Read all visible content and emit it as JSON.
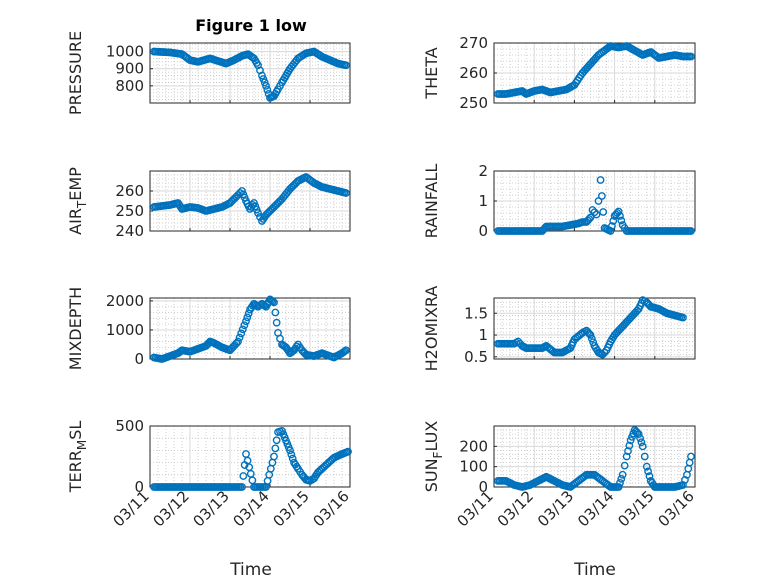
{
  "figure": {
    "title": "Figure 1 low",
    "marker_color": "#0072bd",
    "xlabel": "Time",
    "xtick_labels": [
      "03/11",
      "03/12",
      "03/13",
      "03/14",
      "03/15",
      "03/16"
    ]
  },
  "chart_data": [
    {
      "type": "scatter",
      "panel": "PRESSURE",
      "ylabel": "PRESSURE",
      "x_start": "03/11",
      "x_end": "03/16",
      "xlim_days": [
        0,
        5
      ],
      "ylim": [
        700,
        1050
      ],
      "yticks": [
        800,
        900,
        1000
      ],
      "grid": true,
      "minor_grid": true,
      "points": [
        [
          0.1,
          1000
        ],
        [
          0.5,
          995
        ],
        [
          0.8,
          985
        ],
        [
          1.0,
          950
        ],
        [
          1.2,
          940
        ],
        [
          1.5,
          960
        ],
        [
          1.7,
          945
        ],
        [
          1.9,
          930
        ],
        [
          2.1,
          950
        ],
        [
          2.3,
          975
        ],
        [
          2.45,
          985
        ],
        [
          2.6,
          960
        ],
        [
          2.7,
          920
        ],
        [
          2.8,
          860
        ],
        [
          2.9,
          800
        ],
        [
          3.0,
          730
        ],
        [
          3.1,
          740
        ],
        [
          3.2,
          780
        ],
        [
          3.3,
          820
        ],
        [
          3.4,
          860
        ],
        [
          3.5,
          900
        ],
        [
          3.7,
          960
        ],
        [
          3.9,
          990
        ],
        [
          4.1,
          1000
        ],
        [
          4.3,
          970
        ],
        [
          4.5,
          950
        ],
        [
          4.7,
          930
        ],
        [
          4.9,
          920
        ]
      ]
    },
    {
      "type": "scatter",
      "panel": "THETA",
      "ylabel": "THETA",
      "x_start": "03/11",
      "x_end": "03/16",
      "xlim_days": [
        0,
        5
      ],
      "ylim": [
        250,
        270
      ],
      "yticks": [
        250,
        260,
        270
      ],
      "grid": true,
      "minor_grid": true,
      "points": [
        [
          0.1,
          253
        ],
        [
          0.3,
          253
        ],
        [
          0.5,
          253.5
        ],
        [
          0.7,
          254
        ],
        [
          0.8,
          253
        ],
        [
          1.0,
          254
        ],
        [
          1.2,
          254.5
        ],
        [
          1.4,
          253.5
        ],
        [
          1.6,
          254
        ],
        [
          1.8,
          254.5
        ],
        [
          2.0,
          256
        ],
        [
          2.2,
          260
        ],
        [
          2.4,
          263
        ],
        [
          2.6,
          266
        ],
        [
          2.8,
          268
        ],
        [
          2.9,
          269
        ],
        [
          3.1,
          268.5
        ],
        [
          3.3,
          269
        ],
        [
          3.5,
          267.5
        ],
        [
          3.7,
          266
        ],
        [
          3.9,
          267
        ],
        [
          4.1,
          265
        ],
        [
          4.3,
          265.5
        ],
        [
          4.5,
          266
        ],
        [
          4.7,
          265.5
        ],
        [
          4.9,
          265.5
        ]
      ]
    },
    {
      "type": "scatter",
      "panel": "AIR_TEMP",
      "ylabel": "AIR_TEMP",
      "ylabel_main": "AIR",
      "ylabel_sub": "T",
      "ylabel_rest": "EMP",
      "x_start": "03/11",
      "x_end": "03/16",
      "xlim_days": [
        0,
        5
      ],
      "ylim": [
        240,
        270
      ],
      "yticks": [
        240,
        250,
        260
      ],
      "grid": true,
      "minor_grid": true,
      "points": [
        [
          0.1,
          252
        ],
        [
          0.3,
          252.5
        ],
        [
          0.5,
          253
        ],
        [
          0.7,
          254
        ],
        [
          0.8,
          251
        ],
        [
          1.0,
          252
        ],
        [
          1.2,
          251.5
        ],
        [
          1.4,
          250
        ],
        [
          1.6,
          251
        ],
        [
          1.8,
          252
        ],
        [
          2.0,
          254
        ],
        [
          2.2,
          258
        ],
        [
          2.3,
          260
        ],
        [
          2.4,
          255
        ],
        [
          2.5,
          251
        ],
        [
          2.6,
          254
        ],
        [
          2.7,
          249
        ],
        [
          2.8,
          245
        ],
        [
          2.9,
          248
        ],
        [
          3.1,
          252
        ],
        [
          3.3,
          256
        ],
        [
          3.5,
          261
        ],
        [
          3.7,
          265
        ],
        [
          3.9,
          267
        ],
        [
          4.1,
          264
        ],
        [
          4.3,
          262
        ],
        [
          4.5,
          261
        ],
        [
          4.7,
          260
        ],
        [
          4.9,
          259
        ]
      ]
    },
    {
      "type": "scatter",
      "panel": "RAINFALL",
      "ylabel": "RAINFALL",
      "x_start": "03/11",
      "x_end": "03/16",
      "xlim_days": [
        0,
        5
      ],
      "ylim": [
        0,
        2
      ],
      "yticks": [
        0,
        1,
        2
      ],
      "grid": true,
      "minor_grid": true,
      "points": [
        [
          0.1,
          0
        ],
        [
          0.5,
          0
        ],
        [
          1.0,
          0
        ],
        [
          1.2,
          0
        ],
        [
          1.3,
          0.15
        ],
        [
          1.5,
          0.15
        ],
        [
          1.7,
          0.15
        ],
        [
          1.9,
          0.2
        ],
        [
          2.1,
          0.25
        ],
        [
          2.2,
          0.3
        ],
        [
          2.3,
          0.3
        ],
        [
          2.4,
          0.45
        ],
        [
          2.45,
          0.7
        ],
        [
          2.55,
          0.55
        ],
        [
          2.6,
          1.0
        ],
        [
          2.65,
          1.7
        ],
        [
          2.75,
          0.1
        ],
        [
          2.9,
          0
        ],
        [
          3.0,
          0.5
        ],
        [
          3.1,
          0.65
        ],
        [
          3.2,
          0.2
        ],
        [
          3.3,
          0
        ],
        [
          3.5,
          0
        ],
        [
          4.0,
          0
        ],
        [
          4.5,
          0
        ],
        [
          4.9,
          0
        ]
      ]
    },
    {
      "type": "scatter",
      "panel": "MIXDEPTH",
      "ylabel": "MIXDEPTH",
      "x_start": "03/11",
      "x_end": "03/16",
      "xlim_days": [
        0,
        5
      ],
      "ylim": [
        0,
        2100
      ],
      "yticks": [
        0,
        1000,
        2000
      ],
      "grid": true,
      "minor_grid": true,
      "points": [
        [
          0.1,
          50
        ],
        [
          0.3,
          0
        ],
        [
          0.5,
          100
        ],
        [
          0.7,
          200
        ],
        [
          0.8,
          300
        ],
        [
          1.0,
          250
        ],
        [
          1.2,
          350
        ],
        [
          1.4,
          450
        ],
        [
          1.5,
          600
        ],
        [
          1.6,
          550
        ],
        [
          1.8,
          400
        ],
        [
          2.0,
          300
        ],
        [
          2.2,
          600
        ],
        [
          2.4,
          1300
        ],
        [
          2.5,
          1700
        ],
        [
          2.6,
          1900
        ],
        [
          2.7,
          1800
        ],
        [
          2.8,
          1900
        ],
        [
          2.9,
          1800
        ],
        [
          3.0,
          2050
        ],
        [
          3.1,
          1950
        ],
        [
          3.2,
          900
        ],
        [
          3.3,
          500
        ],
        [
          3.4,
          400
        ],
        [
          3.5,
          200
        ],
        [
          3.6,
          300
        ],
        [
          3.7,
          500
        ],
        [
          3.8,
          300
        ],
        [
          3.9,
          150
        ],
        [
          4.1,
          100
        ],
        [
          4.3,
          200
        ],
        [
          4.5,
          100
        ],
        [
          4.6,
          50
        ],
        [
          4.8,
          200
        ],
        [
          4.9,
          300
        ]
      ]
    },
    {
      "type": "scatter",
      "panel": "H2OMIXRA",
      "ylabel": "H2OMIXRA",
      "x_start": "03/11",
      "x_end": "03/16",
      "xlim_days": [
        0,
        5
      ],
      "ylim": [
        0.45,
        1.85
      ],
      "yticks": [
        0.5,
        1,
        1.5
      ],
      "grid": true,
      "minor_grid": true,
      "points": [
        [
          0.1,
          0.8
        ],
        [
          0.3,
          0.8
        ],
        [
          0.5,
          0.8
        ],
        [
          0.6,
          0.85
        ],
        [
          0.7,
          0.75
        ],
        [
          0.8,
          0.7
        ],
        [
          1.0,
          0.7
        ],
        [
          1.2,
          0.7
        ],
        [
          1.3,
          0.75
        ],
        [
          1.5,
          0.6
        ],
        [
          1.7,
          0.6
        ],
        [
          1.9,
          0.7
        ],
        [
          2.0,
          0.9
        ],
        [
          2.2,
          1.05
        ],
        [
          2.3,
          1.1
        ],
        [
          2.4,
          1.0
        ],
        [
          2.5,
          0.75
        ],
        [
          2.6,
          0.6
        ],
        [
          2.7,
          0.55
        ],
        [
          2.8,
          0.65
        ],
        [
          2.9,
          0.85
        ],
        [
          3.0,
          1.0
        ],
        [
          3.2,
          1.2
        ],
        [
          3.4,
          1.4
        ],
        [
          3.6,
          1.6
        ],
        [
          3.7,
          1.8
        ],
        [
          3.8,
          1.75
        ],
        [
          3.9,
          1.65
        ],
        [
          4.1,
          1.6
        ],
        [
          4.3,
          1.5
        ],
        [
          4.5,
          1.45
        ],
        [
          4.7,
          1.4
        ]
      ]
    },
    {
      "type": "scatter",
      "panel": "TERR_MSL",
      "ylabel": "TERR_MSL",
      "ylabel_main": "TERR",
      "ylabel_sub": "M",
      "ylabel_rest": "SL",
      "x_start": "03/11",
      "x_end": "03/16",
      "xlim_days": [
        0,
        5
      ],
      "ylim": [
        0,
        500
      ],
      "yticks": [
        0,
        500
      ],
      "grid": true,
      "minor_grid": true,
      "points": [
        [
          0.1,
          0
        ],
        [
          0.5,
          0
        ],
        [
          1.0,
          0
        ],
        [
          1.5,
          0
        ],
        [
          2.0,
          0
        ],
        [
          2.3,
          0
        ],
        [
          2.4,
          270
        ],
        [
          2.6,
          0
        ],
        [
          2.9,
          0
        ],
        [
          3.1,
          250
        ],
        [
          3.2,
          450
        ],
        [
          3.3,
          460
        ],
        [
          3.4,
          380
        ],
        [
          3.5,
          300
        ],
        [
          3.6,
          200
        ],
        [
          3.7,
          150
        ],
        [
          3.8,
          100
        ],
        [
          3.9,
          60
        ],
        [
          4.0,
          50
        ],
        [
          4.1,
          70
        ],
        [
          4.2,
          120
        ],
        [
          4.4,
          180
        ],
        [
          4.6,
          240
        ],
        [
          4.8,
          270
        ],
        [
          4.95,
          290
        ]
      ]
    },
    {
      "type": "scatter",
      "panel": "SUN_FLUX",
      "ylabel": "SUN_FLUX",
      "ylabel_main": "SUN",
      "ylabel_sub": "F",
      "ylabel_rest": "LUX",
      "x_start": "03/11",
      "x_end": "03/16",
      "xlim_days": [
        0,
        5
      ],
      "ylim": [
        0,
        300
      ],
      "yticks": [
        0,
        100,
        200
      ],
      "grid": true,
      "minor_grid": true,
      "points": [
        [
          0.1,
          30
        ],
        [
          0.3,
          30
        ],
        [
          0.5,
          10
        ],
        [
          0.7,
          0
        ],
        [
          0.9,
          10
        ],
        [
          1.1,
          30
        ],
        [
          1.3,
          50
        ],
        [
          1.5,
          30
        ],
        [
          1.7,
          10
        ],
        [
          1.9,
          0
        ],
        [
          2.1,
          30
        ],
        [
          2.3,
          60
        ],
        [
          2.5,
          60
        ],
        [
          2.7,
          30
        ],
        [
          2.9,
          0
        ],
        [
          3.1,
          0
        ],
        [
          3.2,
          60
        ],
        [
          3.3,
          150
        ],
        [
          3.4,
          230
        ],
        [
          3.5,
          280
        ],
        [
          3.6,
          260
        ],
        [
          3.7,
          200
        ],
        [
          3.8,
          100
        ],
        [
          3.9,
          30
        ],
        [
          4.0,
          0
        ],
        [
          4.2,
          0
        ],
        [
          4.5,
          0
        ],
        [
          4.7,
          10
        ],
        [
          4.8,
          60
        ],
        [
          4.9,
          150
        ]
      ]
    }
  ]
}
